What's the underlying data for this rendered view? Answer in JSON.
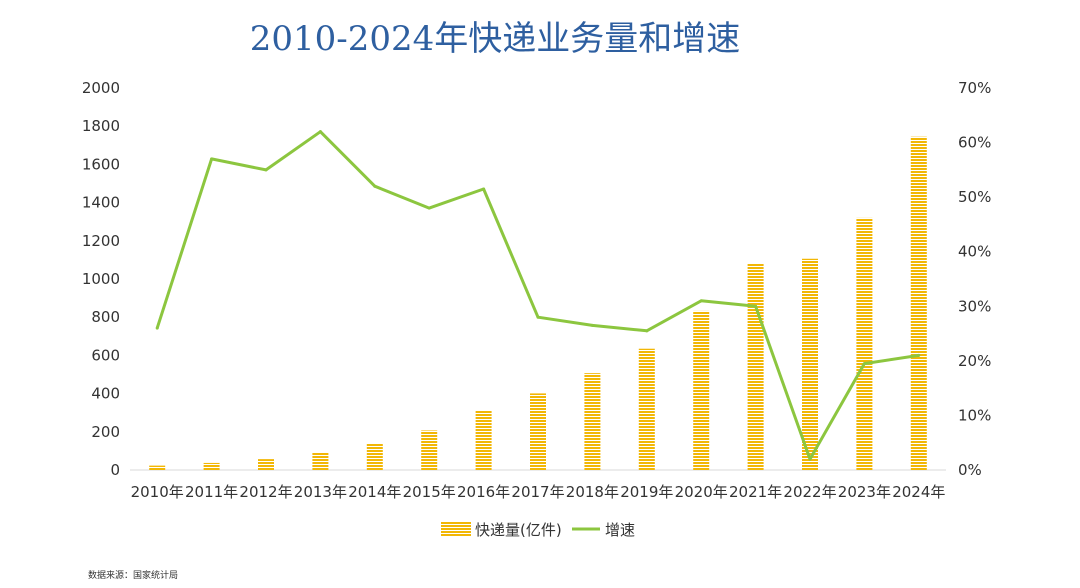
{
  "chart_data": {
    "type": "bar",
    "title": "2010-2024年快递业务量和增速",
    "categories": [
      "2010年",
      "2011年",
      "2012年",
      "2013年",
      "2014年",
      "2015年",
      "2016年",
      "2017年",
      "2018年",
      "2019年",
      "2020年",
      "2021年",
      "2022年",
      "2023年",
      "2024年"
    ],
    "series": [
      {
        "name": "快递量(亿件)",
        "type": "bar",
        "axis": "left",
        "values": [
          23,
          37,
          57,
          92,
          140,
          207,
          313,
          401,
          507,
          635,
          833,
          1083,
          1106,
          1320,
          1745
        ]
      },
      {
        "name": "增速",
        "type": "line",
        "axis": "right",
        "values": [
          26,
          57,
          55,
          62,
          52,
          48,
          51.5,
          28,
          26.5,
          25.5,
          31,
          30,
          2,
          19.5,
          21
        ]
      }
    ],
    "y_left": {
      "min": 0,
      "max": 2000,
      "ticks": [
        "0",
        "200",
        "400",
        "600",
        "800",
        "1000",
        "1200",
        "1400",
        "1600",
        "1800",
        "2000"
      ]
    },
    "y_right": {
      "min": 0,
      "max": 70,
      "ticks": [
        "0%",
        "10%",
        "20%",
        "30%",
        "40%",
        "50%",
        "60%",
        "70%"
      ]
    },
    "grid": false,
    "legend_position": "bottom",
    "colors": {
      "bar": "#f2b705",
      "line": "#8cc63f",
      "title": "#2e5fa0"
    }
  },
  "source_note": "数据来源：国家统计局"
}
